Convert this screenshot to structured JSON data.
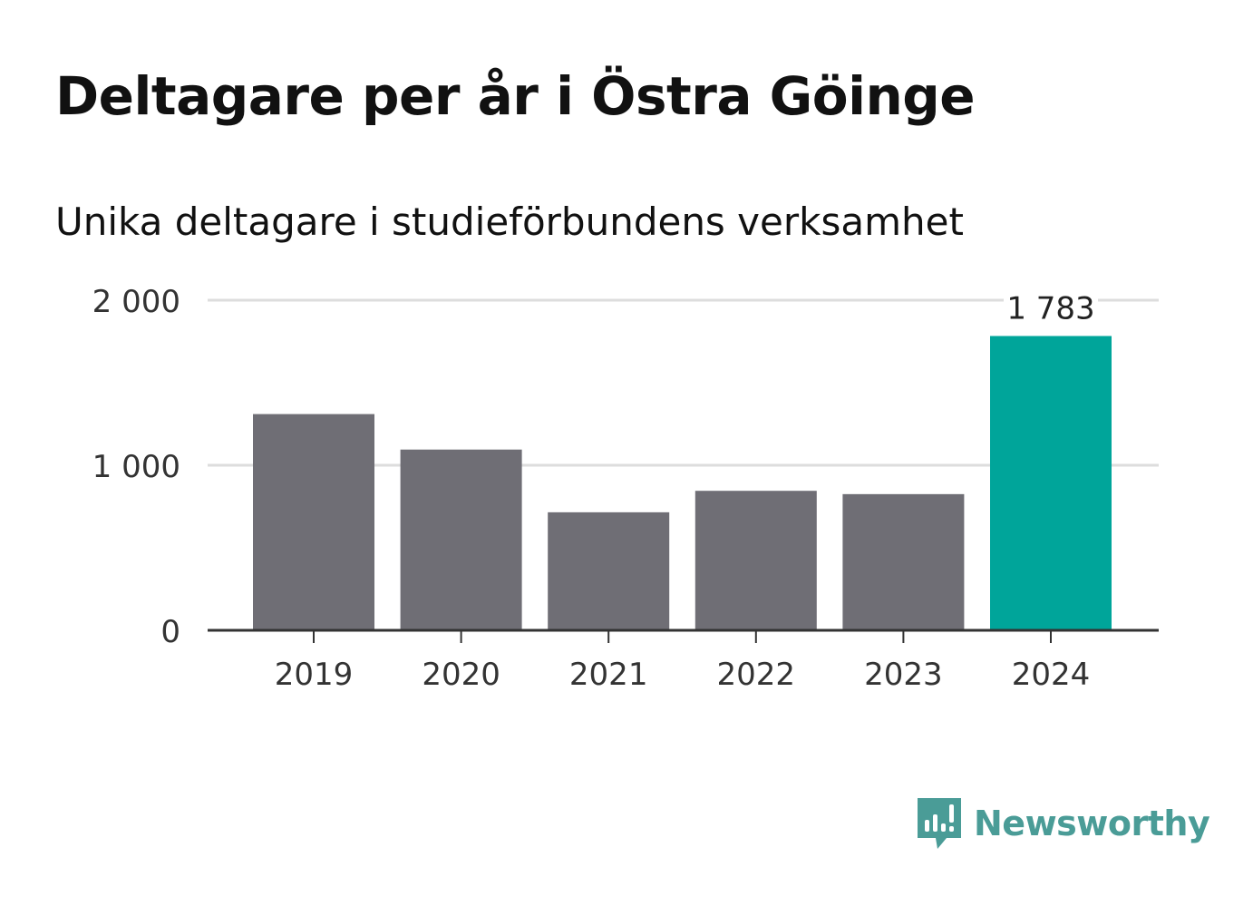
{
  "header": {
    "title": "Deltagare per år i Östra Göinge",
    "subtitle": "Unika deltagare i studieförbundens verksamhet"
  },
  "chart_data": {
    "type": "bar",
    "categories": [
      "2019",
      "2020",
      "2021",
      "2022",
      "2023",
      "2024"
    ],
    "values": [
      1310,
      1095,
      715,
      845,
      825,
      1783
    ],
    "ylim": [
      0,
      2000
    ],
    "yticks": [
      0,
      1000,
      2000
    ],
    "ytick_labels": [
      "0",
      "1 000",
      "2 000"
    ],
    "data_labels": [
      {
        "index": 5,
        "text": "1 783"
      }
    ],
    "colors": {
      "default": "#6f6e75",
      "highlight": "#00a59a",
      "grid": "#dddddd",
      "axis": "#333333"
    },
    "grid": true,
    "xlabel": "",
    "ylabel": ""
  },
  "brand": {
    "name": "Newsworthy",
    "icon": "newsworthy-logo-icon",
    "color": "#4a9c97"
  }
}
